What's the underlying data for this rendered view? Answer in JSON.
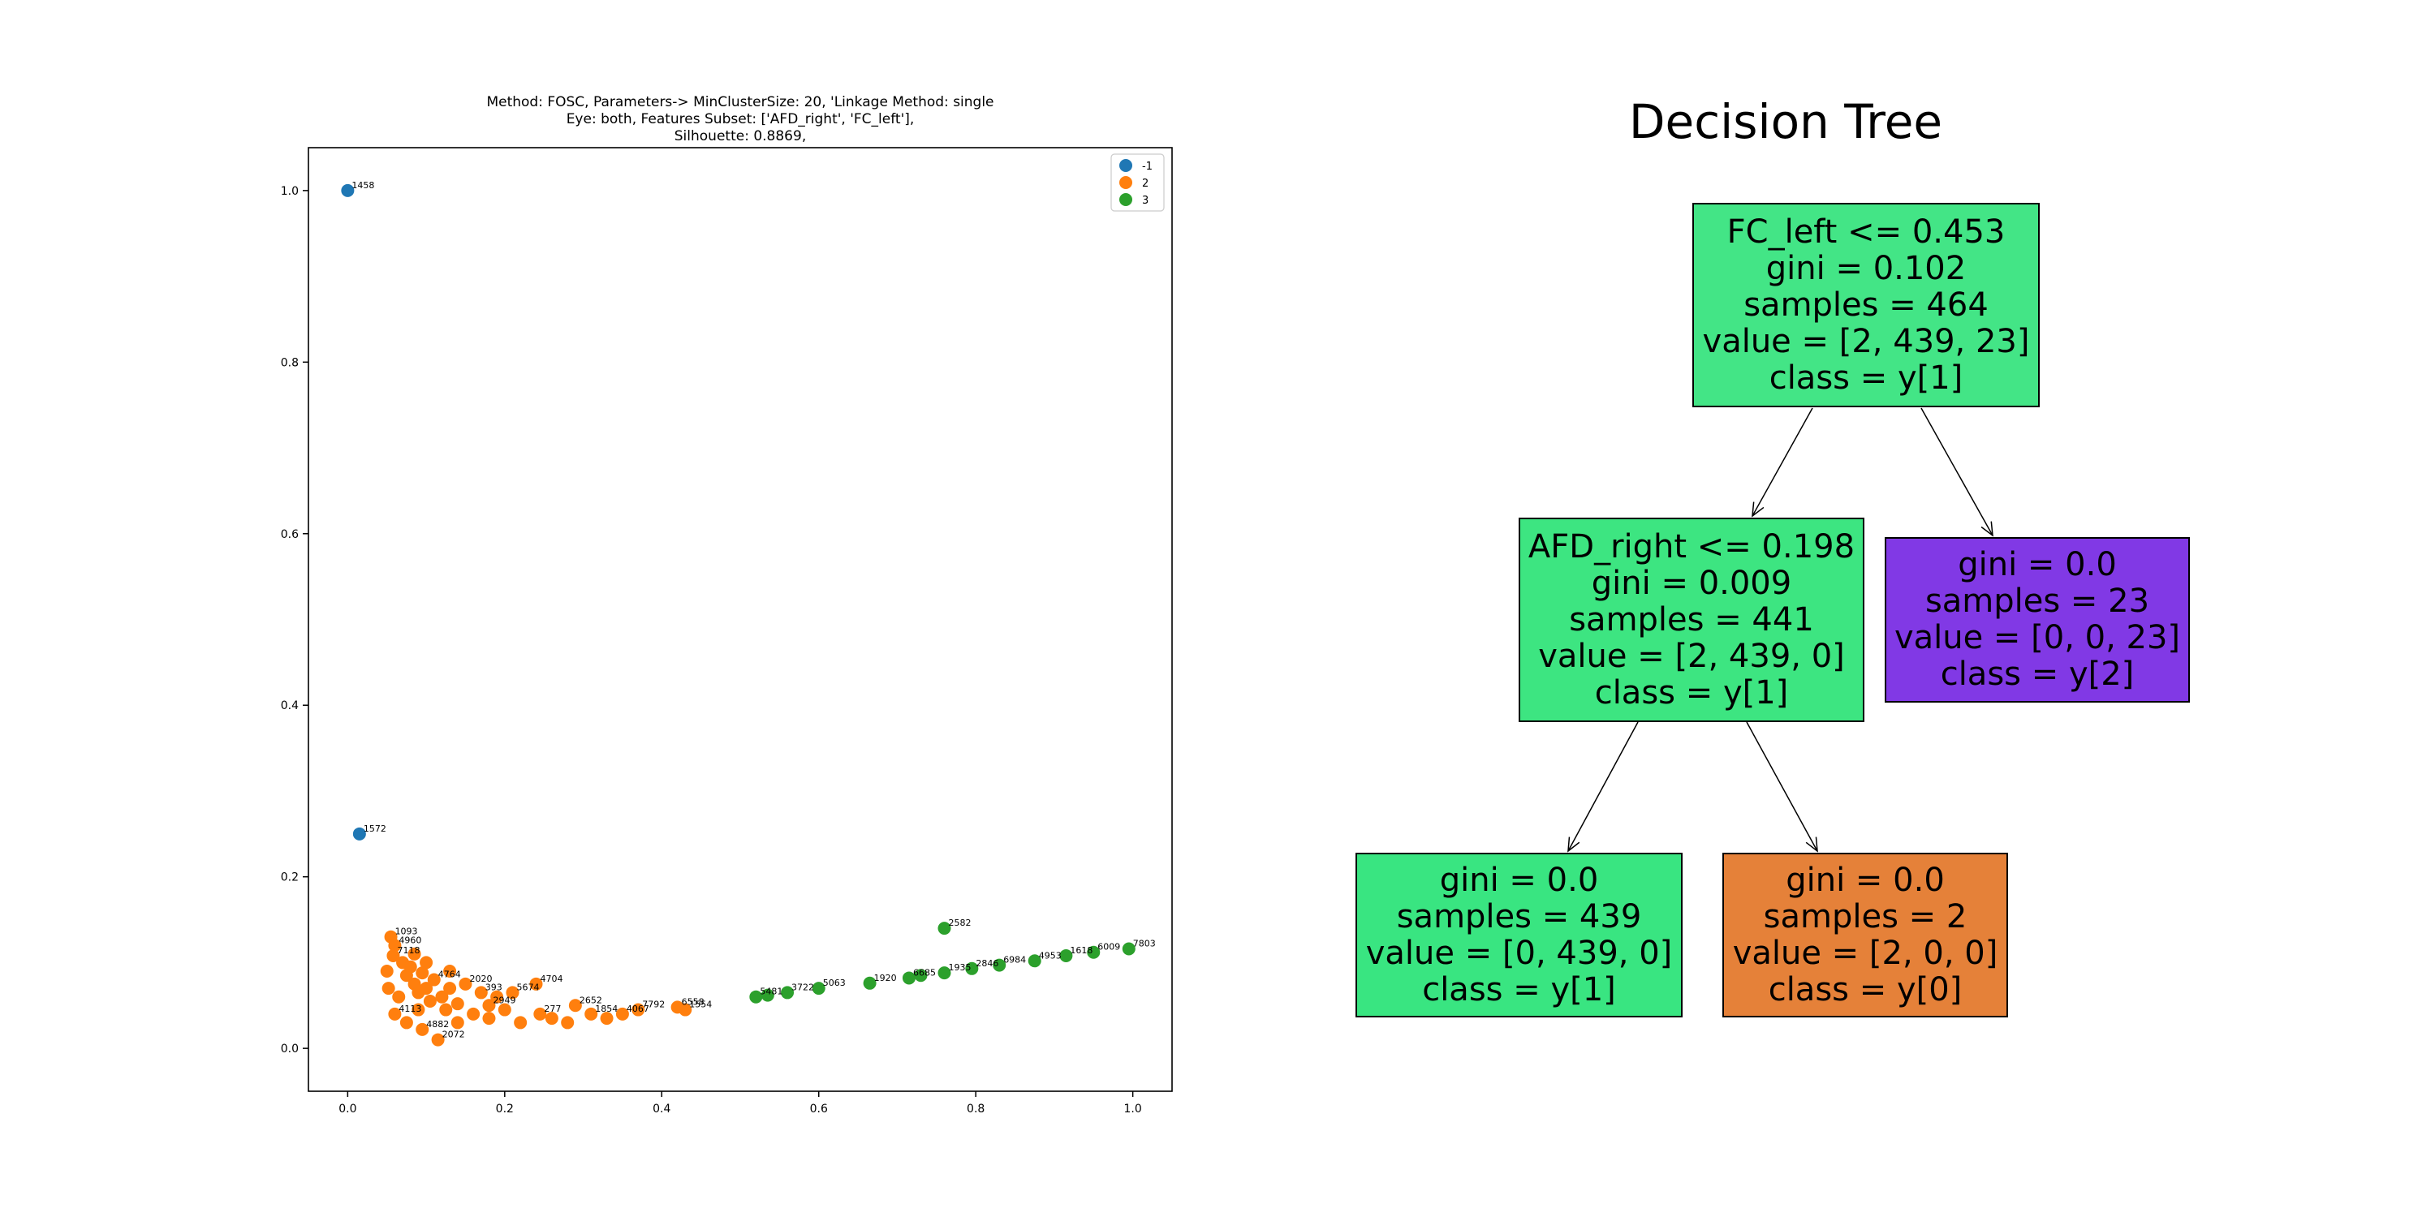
{
  "chart_data": [
    {
      "type": "scatter",
      "title_lines": [
        "Method: FOSC, Parameters-> MinClusterSize: 20, 'Linkage Method: single",
        "Eye: both, Features Subset: ['AFD_right', 'FC_left'],",
        "Silhouette: 0.8869,"
      ],
      "xlabel": "",
      "ylabel": "",
      "xlim": [
        -0.05,
        1.05
      ],
      "ylim": [
        -0.05,
        1.05
      ],
      "xticks": [
        0.0,
        0.2,
        0.4,
        0.6,
        0.8,
        1.0
      ],
      "xtick_labels": [
        "0.0",
        "0.2",
        "0.4",
        "0.6",
        "0.8",
        "1.0"
      ],
      "yticks": [
        0.0,
        0.2,
        0.4,
        0.6,
        0.8,
        1.0
      ],
      "ytick_labels": [
        "0.0",
        "0.2",
        "0.4",
        "0.6",
        "0.8",
        "1.0"
      ],
      "grid": false,
      "legend_position": "top-right",
      "series": [
        {
          "name": "-1",
          "color": "#1f77b4",
          "points": [
            {
              "x": 0.0,
              "y": 1.0,
              "label": "1458"
            },
            {
              "x": 0.015,
              "y": 0.25,
              "label": "1572"
            }
          ]
        },
        {
          "name": "2",
          "color": "#ff7f0e",
          "points": [
            {
              "x": 0.055,
              "y": 0.13,
              "label": "1093"
            },
            {
              "x": 0.06,
              "y": 0.12,
              "label": "4960"
            },
            {
              "x": 0.058,
              "y": 0.108,
              "label": "7118"
            },
            {
              "x": 0.05,
              "y": 0.09,
              "label": ""
            },
            {
              "x": 0.052,
              "y": 0.07,
              "label": ""
            },
            {
              "x": 0.07,
              "y": 0.1,
              "label": ""
            },
            {
              "x": 0.075,
              "y": 0.085,
              "label": ""
            },
            {
              "x": 0.08,
              "y": 0.095,
              "label": ""
            },
            {
              "x": 0.085,
              "y": 0.075,
              "label": ""
            },
            {
              "x": 0.09,
              "y": 0.065,
              "label": ""
            },
            {
              "x": 0.095,
              "y": 0.088,
              "label": ""
            },
            {
              "x": 0.1,
              "y": 0.07,
              "label": ""
            },
            {
              "x": 0.105,
              "y": 0.055,
              "label": ""
            },
            {
              "x": 0.11,
              "y": 0.08,
              "label": "4764"
            },
            {
              "x": 0.12,
              "y": 0.06,
              "label": ""
            },
            {
              "x": 0.125,
              "y": 0.045,
              "label": ""
            },
            {
              "x": 0.13,
              "y": 0.07,
              "label": ""
            },
            {
              "x": 0.14,
              "y": 0.052,
              "label": ""
            },
            {
              "x": 0.15,
              "y": 0.075,
              "label": "2020"
            },
            {
              "x": 0.16,
              "y": 0.04,
              "label": ""
            },
            {
              "x": 0.17,
              "y": 0.065,
              "label": "393"
            },
            {
              "x": 0.18,
              "y": 0.035,
              "label": ""
            },
            {
              "x": 0.19,
              "y": 0.06,
              "label": ""
            },
            {
              "x": 0.2,
              "y": 0.045,
              "label": ""
            },
            {
              "x": 0.21,
              "y": 0.065,
              "label": "5674"
            },
            {
              "x": 0.22,
              "y": 0.03,
              "label": ""
            },
            {
              "x": 0.24,
              "y": 0.075,
              "label": "4704"
            },
            {
              "x": 0.245,
              "y": 0.04,
              "label": "277"
            },
            {
              "x": 0.26,
              "y": 0.035,
              "label": ""
            },
            {
              "x": 0.28,
              "y": 0.03,
              "label": ""
            },
            {
              "x": 0.29,
              "y": 0.05,
              "label": "2652"
            },
            {
              "x": 0.31,
              "y": 0.04,
              "label": "1854"
            },
            {
              "x": 0.33,
              "y": 0.035,
              "label": ""
            },
            {
              "x": 0.35,
              "y": 0.04,
              "label": "4067"
            },
            {
              "x": 0.37,
              "y": 0.045,
              "label": "7792"
            },
            {
              "x": 0.42,
              "y": 0.048,
              "label": "6558"
            },
            {
              "x": 0.43,
              "y": 0.045,
              "label": "1554"
            },
            {
              "x": 0.075,
              "y": 0.03,
              "label": ""
            },
            {
              "x": 0.095,
              "y": 0.022,
              "label": "4882"
            },
            {
              "x": 0.115,
              "y": 0.01,
              "label": "2072"
            },
            {
              "x": 0.09,
              "y": 0.045,
              "label": ""
            },
            {
              "x": 0.065,
              "y": 0.06,
              "label": ""
            },
            {
              "x": 0.14,
              "y": 0.03,
              "label": ""
            },
            {
              "x": 0.18,
              "y": 0.05,
              "label": "2949"
            },
            {
              "x": 0.06,
              "y": 0.04,
              "label": "4113"
            },
            {
              "x": 0.1,
              "y": 0.1,
              "label": ""
            },
            {
              "x": 0.13,
              "y": 0.09,
              "label": ""
            },
            {
              "x": 0.085,
              "y": 0.11,
              "label": ""
            }
          ]
        },
        {
          "name": "3",
          "color": "#2ca02c",
          "points": [
            {
              "x": 0.52,
              "y": 0.06,
              "label": "5481"
            },
            {
              "x": 0.535,
              "y": 0.062,
              "label": ""
            },
            {
              "x": 0.56,
              "y": 0.065,
              "label": "3722"
            },
            {
              "x": 0.6,
              "y": 0.07,
              "label": "5063"
            },
            {
              "x": 0.665,
              "y": 0.076,
              "label": "1920"
            },
            {
              "x": 0.715,
              "y": 0.082,
              "label": "6685"
            },
            {
              "x": 0.73,
              "y": 0.085,
              "label": ""
            },
            {
              "x": 0.76,
              "y": 0.088,
              "label": "1935"
            },
            {
              "x": 0.76,
              "y": 0.14,
              "label": "2582"
            },
            {
              "x": 0.795,
              "y": 0.093,
              "label": "2846"
            },
            {
              "x": 0.83,
              "y": 0.097,
              "label": "6984"
            },
            {
              "x": 0.875,
              "y": 0.102,
              "label": "4953"
            },
            {
              "x": 0.915,
              "y": 0.108,
              "label": "1618"
            },
            {
              "x": 0.95,
              "y": 0.112,
              "label": "6009"
            },
            {
              "x": 0.995,
              "y": 0.116,
              "label": "7803"
            }
          ]
        }
      ]
    },
    {
      "type": "table",
      "kind": "decision-tree",
      "title": "Decision Tree",
      "nodes": [
        {
          "id": "root",
          "lines": [
            "FC_left <= 0.453",
            "gini = 0.102",
            "samples = 464",
            "value = [2, 439, 23]",
            "class = y[1]"
          ],
          "color": "#43e586"
        },
        {
          "id": "left",
          "lines": [
            "AFD_right <= 0.198",
            "gini = 0.009",
            "samples = 441",
            "value = [2, 439, 0]",
            "class = y[1]"
          ],
          "color": "#3de581"
        },
        {
          "id": "right",
          "lines": [
            "gini = 0.0",
            "samples = 23",
            "value = [0, 0, 23]",
            "class = y[2]"
          ],
          "color": "#8139e5"
        },
        {
          "id": "leftleft",
          "lines": [
            "gini = 0.0",
            "samples = 439",
            "value = [0, 439, 0]",
            "class = y[1]"
          ],
          "color": "#39e581"
        },
        {
          "id": "leftright",
          "lines": [
            "gini = 0.0",
            "samples = 2",
            "value = [2, 0, 0]",
            "class = y[0]"
          ],
          "color": "#e58139"
        }
      ],
      "edges": [
        [
          "root",
          "left"
        ],
        [
          "root",
          "right"
        ],
        [
          "left",
          "leftleft"
        ],
        [
          "left",
          "leftright"
        ]
      ]
    }
  ]
}
